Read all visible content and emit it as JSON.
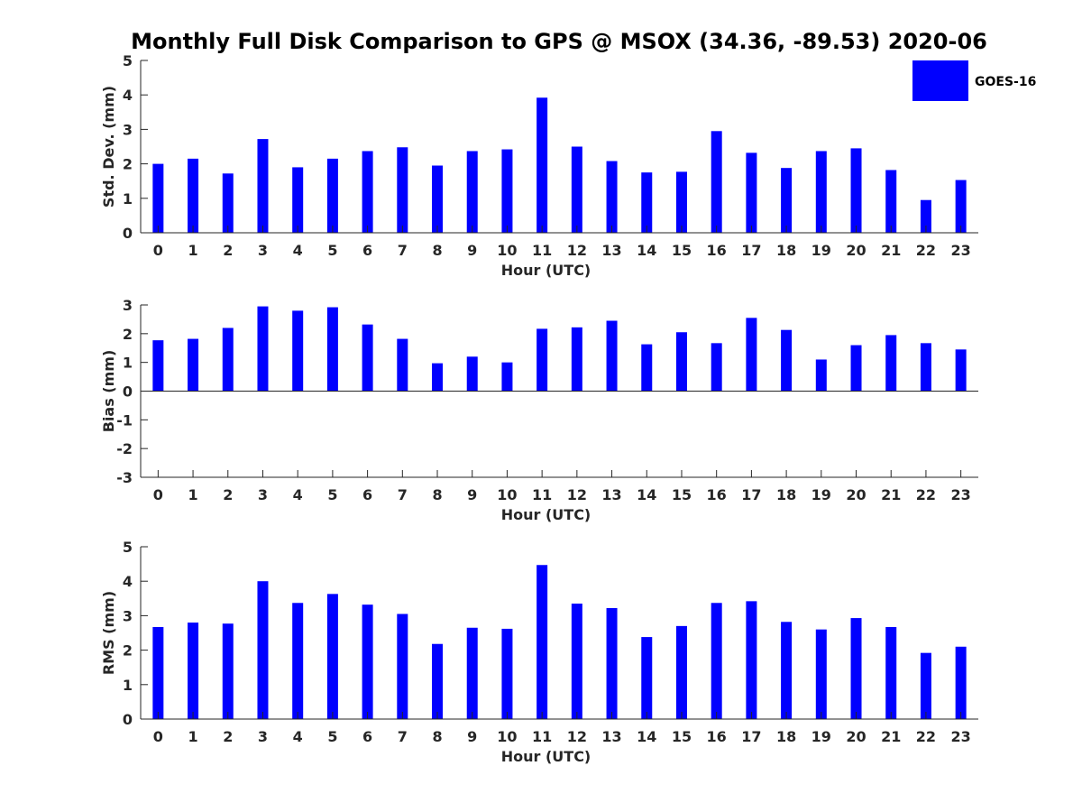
{
  "title": "Monthly Full Disk Comparison to GPS @ MSOX (34.36, -89.53) 2020-06",
  "legend": {
    "label": "GOES-16",
    "color": "#0000ff",
    "placement": "top-right"
  },
  "colors": {
    "bar": "#0000ff",
    "axis": "#262626"
  },
  "chart_data": [
    {
      "type": "bar",
      "xlabel": "Hour (UTC)",
      "ylabel": "Std. Dev. (mm)",
      "ylim": [
        0,
        5
      ],
      "yticks": [
        0,
        1,
        2,
        3,
        4,
        5
      ],
      "grid": false,
      "categories": [
        0,
        1,
        2,
        3,
        4,
        5,
        6,
        7,
        8,
        9,
        10,
        11,
        12,
        13,
        14,
        15,
        16,
        17,
        18,
        19,
        20,
        21,
        22,
        23
      ],
      "series": [
        {
          "name": "GOES-16",
          "values": [
            2.0,
            2.15,
            1.72,
            2.72,
            1.9,
            2.15,
            2.37,
            2.48,
            1.95,
            2.37,
            2.42,
            3.92,
            2.5,
            2.08,
            1.75,
            1.77,
            2.95,
            2.32,
            1.88,
            2.37,
            2.45,
            1.82,
            0.95,
            1.53
          ]
        }
      ]
    },
    {
      "type": "bar",
      "xlabel": "Hour (UTC)",
      "ylabel": "Bias (mm)",
      "ylim": [
        -3,
        3
      ],
      "yticks": [
        -3,
        -2,
        -1,
        0,
        1,
        2,
        3
      ],
      "grid": false,
      "categories": [
        0,
        1,
        2,
        3,
        4,
        5,
        6,
        7,
        8,
        9,
        10,
        11,
        12,
        13,
        14,
        15,
        16,
        17,
        18,
        19,
        20,
        21,
        22,
        23
      ],
      "series": [
        {
          "name": "GOES-16",
          "values": [
            1.77,
            1.82,
            2.2,
            2.95,
            2.8,
            2.92,
            2.32,
            1.82,
            0.97,
            1.2,
            1.0,
            2.17,
            2.22,
            2.45,
            1.63,
            2.05,
            1.67,
            2.55,
            2.13,
            1.1,
            1.6,
            1.95,
            1.67,
            1.45
          ]
        }
      ]
    },
    {
      "type": "bar",
      "xlabel": "Hour (UTC)",
      "ylabel": "RMS (mm)",
      "ylim": [
        0,
        5
      ],
      "yticks": [
        0,
        1,
        2,
        3,
        4,
        5
      ],
      "grid": false,
      "categories": [
        0,
        1,
        2,
        3,
        4,
        5,
        6,
        7,
        8,
        9,
        10,
        11,
        12,
        13,
        14,
        15,
        16,
        17,
        18,
        19,
        20,
        21,
        22,
        23
      ],
      "series": [
        {
          "name": "GOES-16",
          "values": [
            2.67,
            2.8,
            2.77,
            4.0,
            3.37,
            3.63,
            3.32,
            3.05,
            2.18,
            2.65,
            2.62,
            4.47,
            3.35,
            3.22,
            2.38,
            2.7,
            3.37,
            3.42,
            2.82,
            2.6,
            2.93,
            2.67,
            1.92,
            2.1
          ]
        }
      ]
    }
  ]
}
